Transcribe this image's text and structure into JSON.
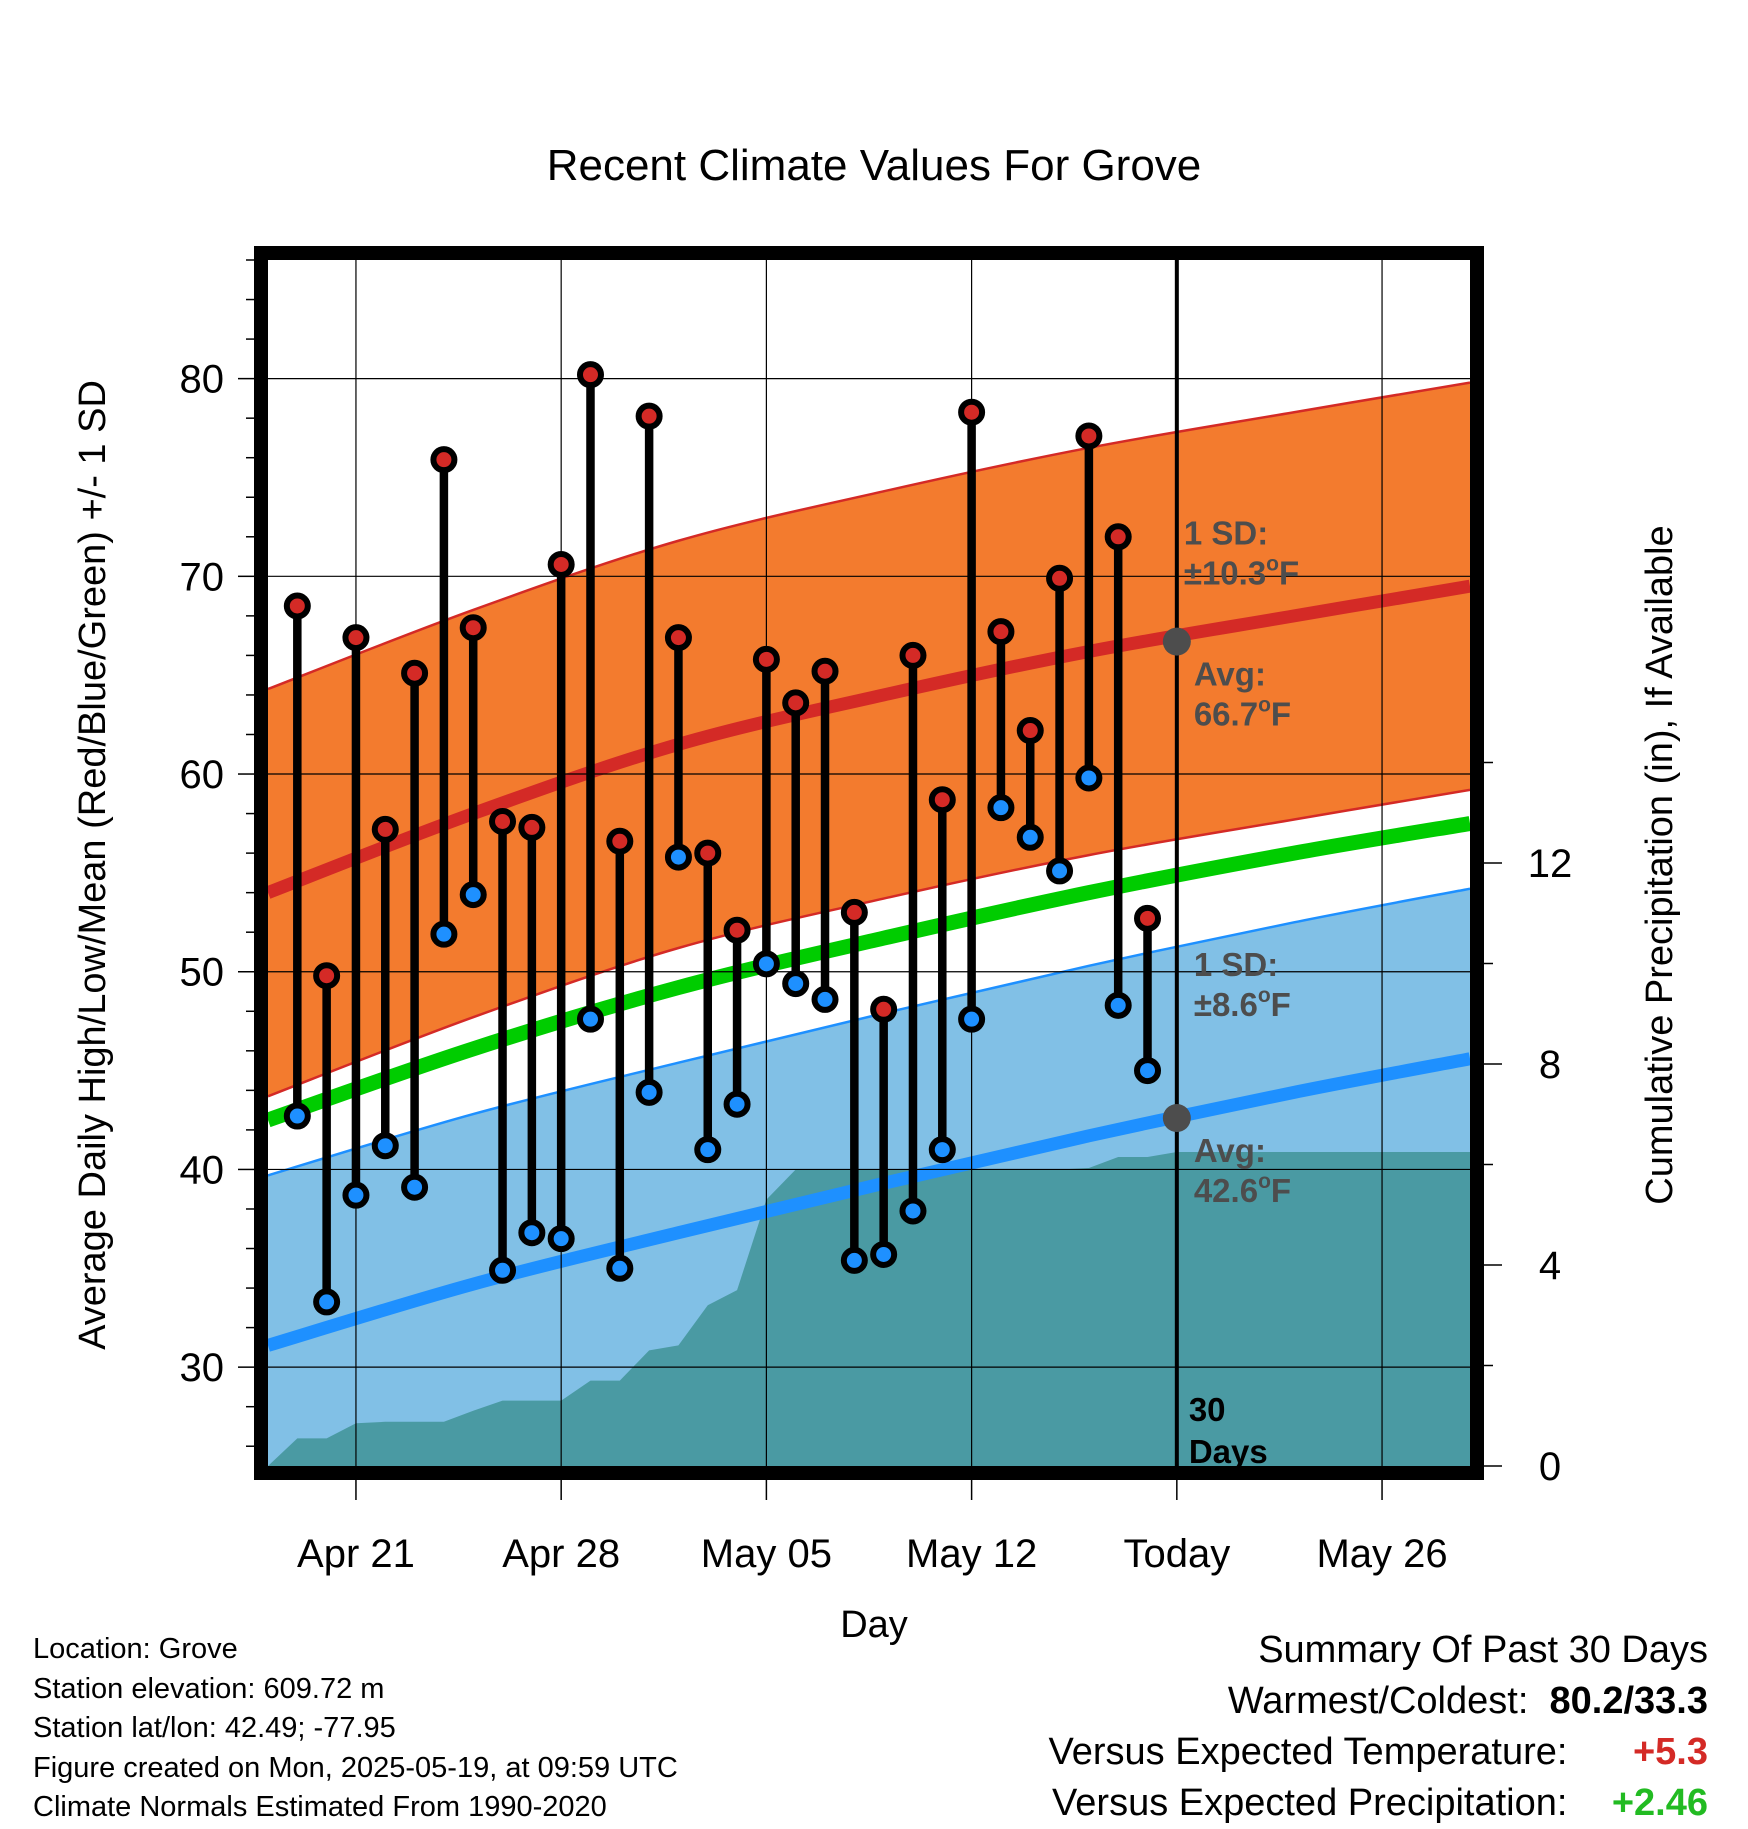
{
  "chart_data": {
    "type": "line",
    "title": "Recent Climate Values For Grove",
    "xlabel": "Day",
    "ylabel": "Average Daily High/Low/Mean (Red/Blue/Green) +/- 1 SD",
    "y2label": "Cumulative Precipitation (in), If Available",
    "ylim": [
      25,
      86
    ],
    "y2lim": [
      0,
      24
    ],
    "yticks": [
      30,
      40,
      50,
      60,
      70,
      80
    ],
    "y2ticks": [
      0,
      4,
      8,
      12
    ],
    "xlim": [
      "2025-04-18",
      "2025-05-29"
    ],
    "xticks": [
      {
        "date": "2025-04-21",
        "label": "Apr 21"
      },
      {
        "date": "2025-04-28",
        "label": "Apr 28"
      },
      {
        "date": "2025-05-05",
        "label": "May 05"
      },
      {
        "date": "2025-05-12",
        "label": "May 12"
      },
      {
        "date": "2025-05-19",
        "label": "Today"
      },
      {
        "date": "2025-05-26",
        "label": "May 26"
      }
    ],
    "grid": true,
    "today": "2025-05-19",
    "days_label": [
      "30",
      "Days"
    ],
    "daily": {
      "dates": [
        "2025-04-19",
        "2025-04-20",
        "2025-04-21",
        "2025-04-22",
        "2025-04-23",
        "2025-04-24",
        "2025-04-25",
        "2025-04-26",
        "2025-04-27",
        "2025-04-28",
        "2025-04-29",
        "2025-04-30",
        "2025-05-01",
        "2025-05-02",
        "2025-05-03",
        "2025-05-04",
        "2025-05-05",
        "2025-05-06",
        "2025-05-07",
        "2025-05-08",
        "2025-05-09",
        "2025-05-10",
        "2025-05-11",
        "2025-05-12",
        "2025-05-13",
        "2025-05-14",
        "2025-05-15",
        "2025-05-16",
        "2025-05-17",
        "2025-05-18"
      ],
      "high": [
        68.5,
        49.8,
        66.9,
        57.2,
        65.1,
        75.9,
        67.4,
        57.6,
        57.3,
        70.6,
        80.2,
        56.6,
        78.1,
        66.9,
        56.0,
        52.1,
        65.8,
        63.6,
        65.2,
        53.0,
        48.1,
        66.0,
        58.7,
        78.3,
        67.2,
        62.2,
        69.9,
        77.1,
        72.0,
        52.7
      ],
      "low": [
        42.7,
        33.3,
        38.7,
        41.2,
        39.1,
        51.9,
        53.9,
        34.9,
        36.8,
        36.5,
        47.6,
        35.0,
        43.9,
        55.8,
        41.0,
        43.3,
        50.4,
        49.4,
        48.6,
        35.4,
        35.7,
        37.9,
        41.0,
        47.6,
        58.3,
        56.8,
        55.1,
        59.8,
        48.3,
        45.0
      ]
    },
    "normals": {
      "dates": [
        "2025-04-18",
        "2025-04-25",
        "2025-05-02",
        "2025-05-09",
        "2025-05-16",
        "2025-05-23",
        "2025-05-29"
      ],
      "high_avg": [
        54.0,
        58.0,
        61.5,
        64.0,
        66.2,
        68.0,
        69.5
      ],
      "high_sd": 10.3,
      "low_avg": [
        31.1,
        34.2,
        36.8,
        39.3,
        41.7,
        43.9,
        45.6
      ],
      "low_sd": 8.6,
      "mean_avg": [
        42.5,
        46.1,
        49.2,
        51.7,
        54.0,
        56.0,
        57.5
      ]
    },
    "precip": {
      "dates": [
        "2025-04-18",
        "2025-04-19",
        "2025-04-20",
        "2025-04-21",
        "2025-04-22",
        "2025-04-23",
        "2025-04-24",
        "2025-04-25",
        "2025-04-26",
        "2025-04-27",
        "2025-04-28",
        "2025-04-29",
        "2025-04-30",
        "2025-05-01",
        "2025-05-02",
        "2025-05-03",
        "2025-05-04",
        "2025-05-05",
        "2025-05-06",
        "2025-05-07",
        "2025-05-08",
        "2025-05-09",
        "2025-05-10",
        "2025-05-11",
        "2025-05-12",
        "2025-05-13",
        "2025-05-14",
        "2025-05-15",
        "2025-05-16",
        "2025-05-17",
        "2025-05-18",
        "2025-05-19",
        "2025-05-29"
      ],
      "values": [
        0.0,
        0.55,
        0.55,
        0.85,
        0.88,
        0.88,
        0.88,
        1.1,
        1.3,
        1.3,
        1.3,
        1.7,
        1.7,
        2.3,
        2.4,
        3.2,
        3.5,
        5.3,
        5.9,
        5.9,
        5.9,
        5.9,
        5.9,
        5.9,
        5.9,
        5.9,
        5.9,
        5.9,
        5.93,
        6.15,
        6.15,
        6.25,
        6.25
      ]
    },
    "annotations": {
      "high_sd_label": [
        "1 SD:",
        "±10.3",
        "o",
        "F"
      ],
      "high_avg_label": [
        "Avg:",
        "66.7",
        "o",
        "F"
      ],
      "low_sd_label": [
        "1 SD:",
        "±8.6",
        "o",
        "F"
      ],
      "low_avg_label": [
        "Avg:",
        "42.6",
        "o",
        "F"
      ],
      "today_high_avg": 66.7,
      "today_low_avg": 42.6
    },
    "colors": {
      "high_band": "#f37b2e",
      "high_line": "#d42a26",
      "low_band": "#81c0e6",
      "low_line": "#1e90ff",
      "mean_line": "#00cc00",
      "precip": "#4a9aa3",
      "high_dot": "#d42a26",
      "low_dot": "#1e90ff",
      "avg_dot": "#4d4d4d"
    }
  },
  "info": {
    "location": "Location: Grove",
    "elevation": "Station elevation: 609.72 m",
    "latlon": "Station lat/lon: 42.49; -77.95",
    "created": "Figure created on Mon, 2025-05-19, at 09:59 UTC",
    "normals": "Climate Normals Estimated From 1990-2020"
  },
  "summary": {
    "heading": "Summary Of Past 30 Days",
    "warm_cold_label": "Warmest/Coldest:",
    "warm_cold_value": "80.2/33.3",
    "temp_label": "Versus Expected Temperature:",
    "temp_value": "+5.3",
    "temp_color": "#d42a26",
    "precip_label": "Versus Expected Precipitation:",
    "precip_value": "+2.46",
    "precip_color": "#22bb22"
  }
}
